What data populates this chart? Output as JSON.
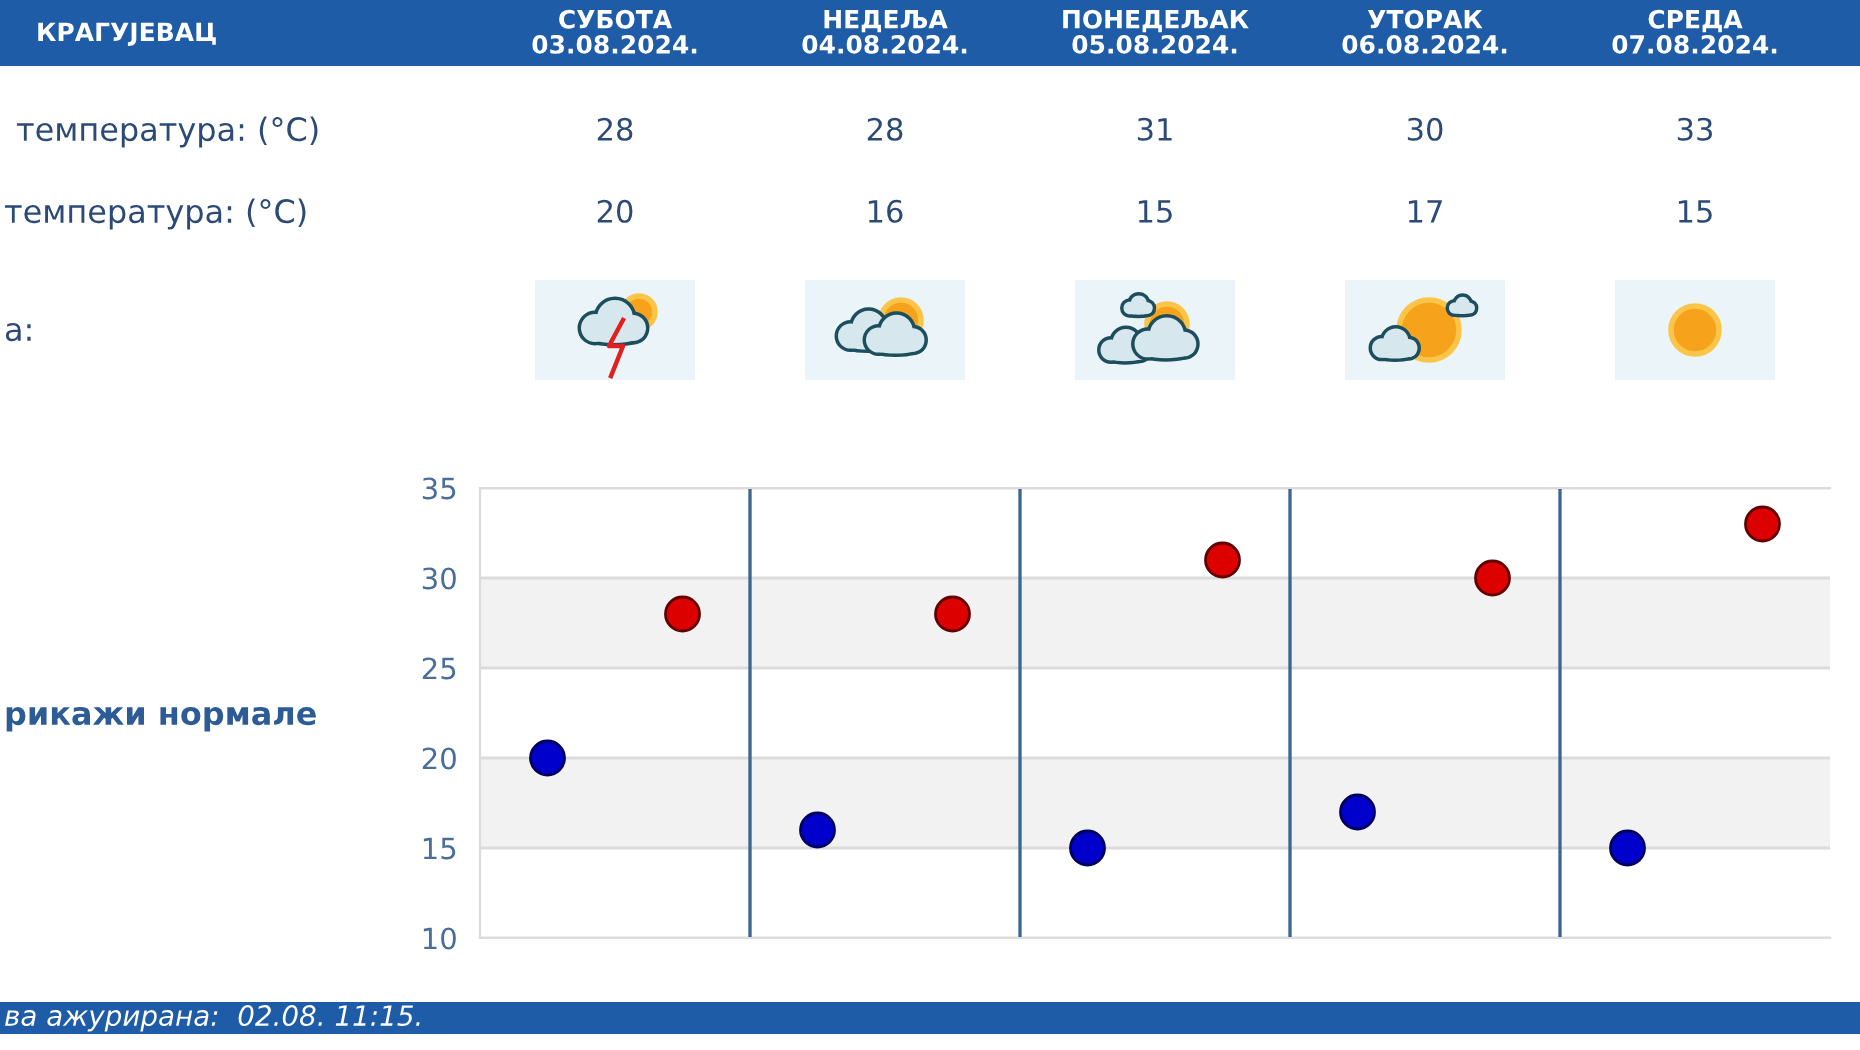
{
  "chart_data": {
    "type": "scatter",
    "title": "КРАГУЈЕВАЦ",
    "categories": [
      null,
      null,
      null,
      null,
      null
    ],
    "series": [
      {
        "color": "#dd0000",
        "values": [
          28,
          28,
          31,
          30,
          33
        ]
      },
      {
        "color": "#0000cc",
        "values": [
          20,
          16,
          15,
          17,
          15
        ]
      }
    ],
    "ylim": [
      10,
      35
    ],
    "yticks": [
      10,
      15,
      20,
      25,
      30,
      35
    ],
    "grid": true,
    "tick_labels": "y",
    "bands": [
      {
        "axis": "y",
        "from": 15,
        "to": 20,
        "color": "#f2f2f2"
      },
      {
        "axis": "y",
        "from": 25,
        "to": 30,
        "color": "#f2f2f2"
      }
    ],
    "marker": "circle",
    "data_labels": true,
    "annotations": [
      "СУБОТА\n03.08.2024.",
      "НЕДЕЉА\n04.08.2024.",
      "ПОНЕДЕЉАК\n05.08.2024.",
      "УТОРАК\n06.08.2024.",
      "СРЕДА\n07.08.2024.",
      "температура: (°C)",
      "температура: (°C)",
      "а:",
      "рикажи нормале",
      "ва ажурирана:  02.08. 11:15."
    ]
  }
}
